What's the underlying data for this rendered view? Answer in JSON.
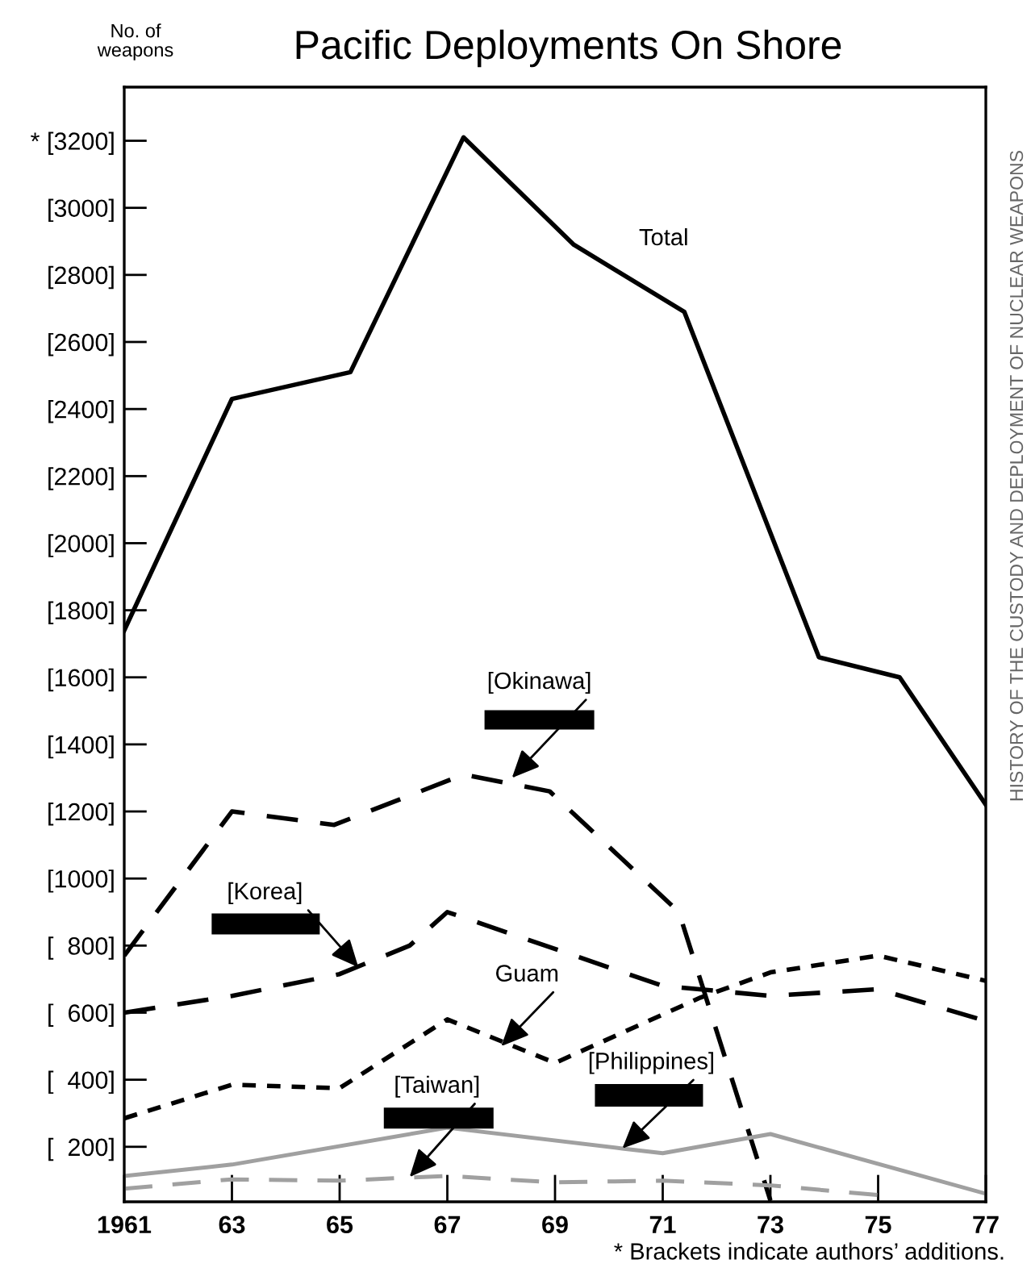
{
  "chart_data": {
    "type": "line",
    "title": "Pacific Deployments On Shore",
    "ylabel": "No. of\nweapons",
    "xlim": [
      1961,
      1977
    ],
    "ylim": [
      36,
      3360
    ],
    "xticks": [
      {
        "value": 1961,
        "label": "1961"
      },
      {
        "value": 1963,
        "label": "63"
      },
      {
        "value": 1965,
        "label": "65"
      },
      {
        "value": 1967,
        "label": "67"
      },
      {
        "value": 1969,
        "label": "69"
      },
      {
        "value": 1971,
        "label": "71"
      },
      {
        "value": 1973,
        "label": "73"
      },
      {
        "value": 1975,
        "label": "75"
      },
      {
        "value": 1977,
        "label": "77"
      }
    ],
    "yticks": [
      {
        "value": 200,
        "label": "[  200]"
      },
      {
        "value": 400,
        "label": "[  400]"
      },
      {
        "value": 600,
        "label": "[  600]"
      },
      {
        "value": 800,
        "label": "[  800]"
      },
      {
        "value": 1000,
        "label": "[1000]"
      },
      {
        "value": 1200,
        "label": "[1200]"
      },
      {
        "value": 1400,
        "label": "[1400]"
      },
      {
        "value": 1600,
        "label": "[1600]"
      },
      {
        "value": 1800,
        "label": "[1800]"
      },
      {
        "value": 2000,
        "label": "[2000]"
      },
      {
        "value": 2200,
        "label": "[2200]"
      },
      {
        "value": 2400,
        "label": "[2400]"
      },
      {
        "value": 2600,
        "label": "[2600]"
      },
      {
        "value": 2800,
        "label": "[2800]"
      },
      {
        "value": 3000,
        "label": "[3000]"
      },
      {
        "value": 3200,
        "label": "* [3200]"
      }
    ],
    "grid": false,
    "legend": false,
    "marker": "none",
    "series": [
      {
        "color": "#000000",
        "line_style": "solid",
        "x": [
          1961,
          1963,
          1965.2,
          1967.3,
          1969.35,
          1971.4,
          1973.9,
          1975.4,
          1977
        ],
        "values": [
          1740,
          2430,
          2510,
          3210,
          2890,
          2690,
          1660,
          1600,
          1220
        ]
      },
      {
        "color": "#000000",
        "line_style": "dashed",
        "x": [
          1961,
          1963,
          1964.9,
          1967.3,
          1968.9,
          1971.3,
          1973
        ],
        "values": [
          770,
          1200,
          1160,
          1310,
          1260,
          900,
          40
        ]
      },
      {
        "color": "#000000",
        "line_style": "dashed",
        "x": [
          1961,
          1963,
          1965,
          1966.3,
          1967,
          1971,
          1972,
          1973,
          1975,
          1977
        ],
        "values": [
          600,
          650,
          715,
          800,
          900,
          680,
          665,
          650,
          670,
          575
        ]
      },
      {
        "color": "#000000",
        "line_style": "dotted",
        "x": [
          1961,
          1963,
          1965,
          1967,
          1969,
          1971.7,
          1973,
          1975,
          1977
        ],
        "values": [
          285,
          385,
          375,
          580,
          450,
          645,
          720,
          770,
          695
        ]
      },
      {
        "color": "#a0a0a0",
        "line_style": "solid",
        "x": [
          1961,
          1963,
          1967,
          1970.25,
          1971,
          1973,
          1977
        ],
        "values": [
          113,
          147,
          257,
          195,
          181,
          238,
          60
        ]
      },
      {
        "color": "#a0a0a0",
        "line_style": "dashed",
        "x": [
          1961,
          1963,
          1965,
          1967,
          1969,
          1971,
          1973,
          1975
        ],
        "values": [
          75,
          103,
          99,
          113,
          94,
          99,
          85,
          56
        ]
      }
    ],
    "annotations": [
      {
        "text": "Total",
        "x": 1970,
        "y": 2820
      },
      {
        "text": "[Okinawa]",
        "x": 1968.2,
        "y": 1300
      },
      {
        "text": "[Korea]",
        "x": 1965.35,
        "y": 735
      },
      {
        "text": "Guam",
        "x": 1968,
        "y": 500
      },
      {
        "text": "[Taiwan]",
        "x": 1966.3,
        "y": 110
      },
      {
        "text": "[Philippines]",
        "x": 1970.25,
        "y": 195
      },
      "* Brackets indicate authors’ additions.",
      "HISTORY OF THE CUSTODY AND DEPLOYMENT OF NUCLEAR WEAPONS"
    ]
  }
}
